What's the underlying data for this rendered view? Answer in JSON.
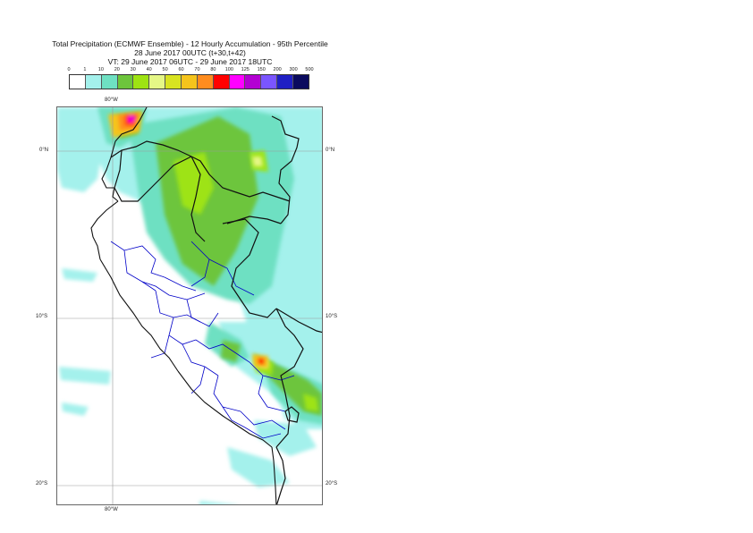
{
  "title": {
    "line1": "Total Precipitation (ECMWF Ensemble) - 12 Hourly Accumulation - 95th Percentile",
    "line2": "28 June 2017 00UTC (t+30,t+42)",
    "line3": "VT: 29 June 2017 06UTC - 29 June 2017 18UTC"
  },
  "legend": {
    "ticks": [
      "0",
      "1",
      "10",
      "20",
      "30",
      "40",
      "50",
      "60",
      "70",
      "80",
      "100",
      "125",
      "150",
      "200",
      "300",
      "500"
    ],
    "colors": [
      "#ffffff",
      "#a4f1ec",
      "#6ee0c2",
      "#6dc53c",
      "#9ee312",
      "#e5f786",
      "#d8e321",
      "#f5c41c",
      "#ff8c1e",
      "#ff0000",
      "#ff00ff",
      "#b300d2",
      "#7a55ff",
      "#1f1fc4",
      "#0a0a5e"
    ]
  },
  "axes": {
    "lon_top": "80°W",
    "lon_bottom": "80°W",
    "lat_labels": [
      {
        "lat": 0,
        "text": "0°N"
      },
      {
        "lat": -10,
        "text": "10°S"
      },
      {
        "lat": -20,
        "text": "20°S"
      }
    ]
  },
  "map": {
    "lon_range": [
      -83.5,
      -67.6
    ],
    "lat_range": [
      2.6,
      -21.2
    ],
    "grid_lon": -80,
    "grid_lats": [
      0,
      -10,
      -20
    ]
  }
}
